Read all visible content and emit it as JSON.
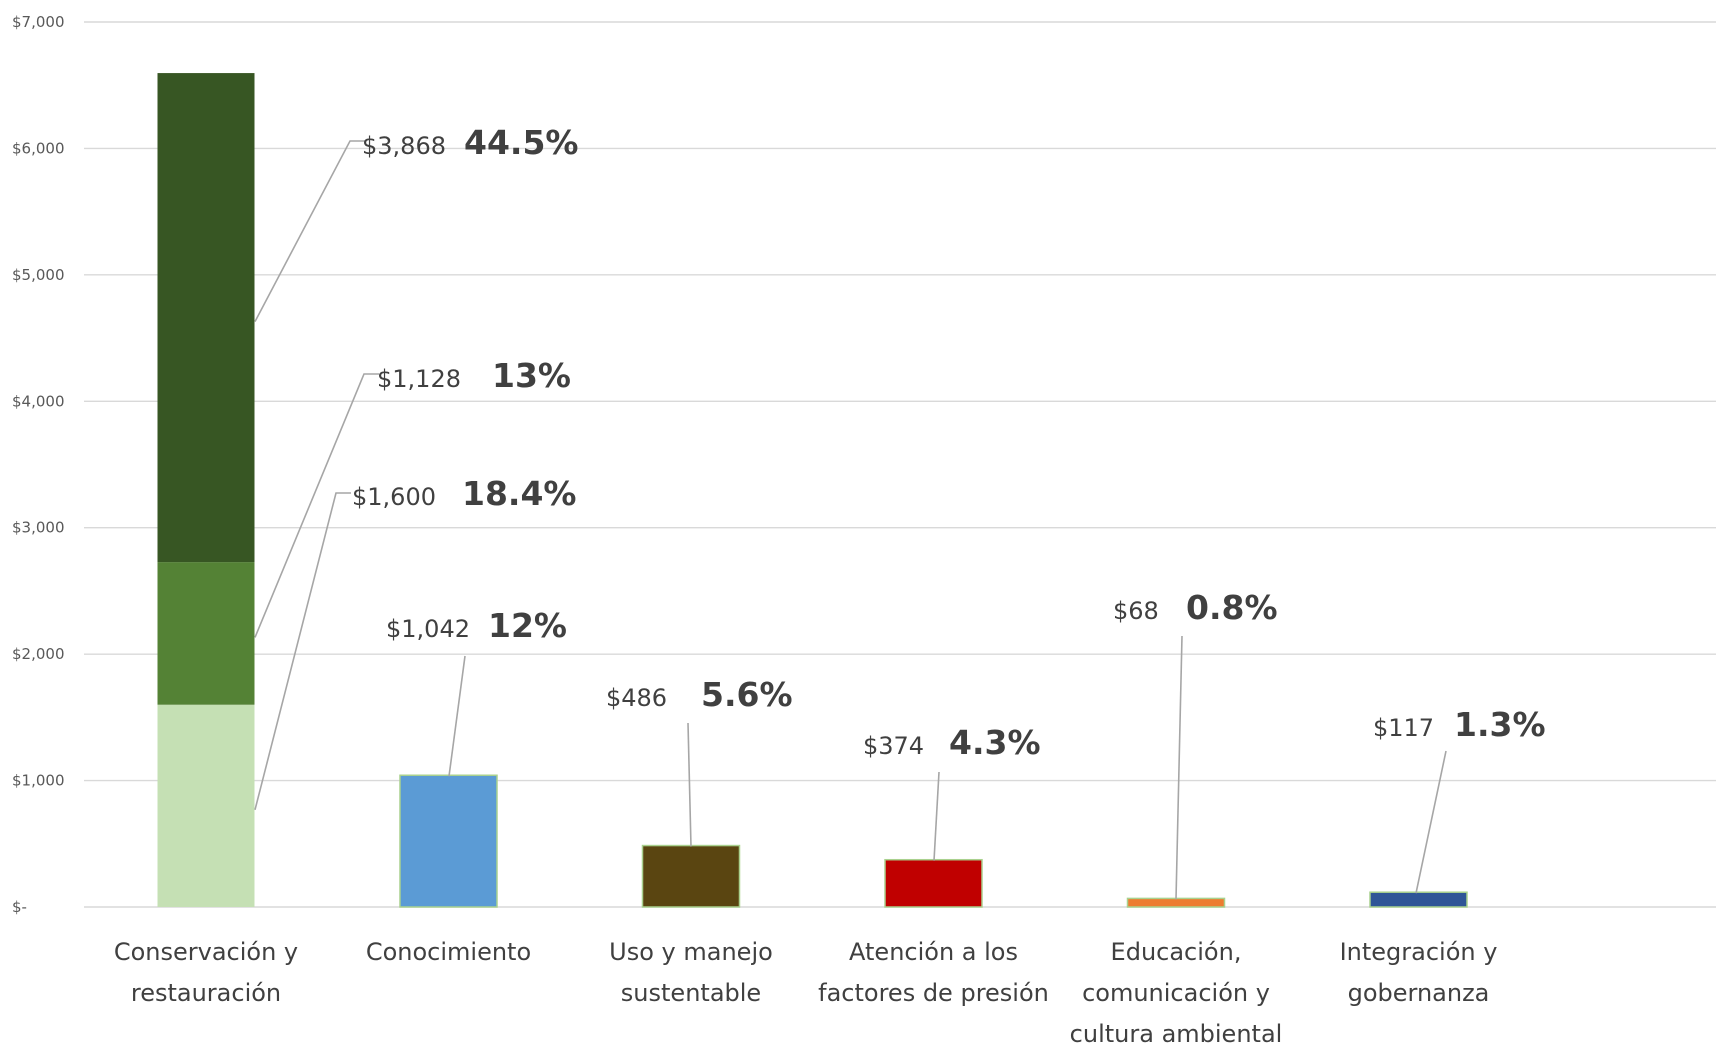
{
  "chart_data": {
    "type": "bar",
    "stacked": true,
    "title": "",
    "xlabel": "",
    "ylabel": "",
    "ylim": [
      0,
      7000
    ],
    "y_ticks": [
      {
        "value": 0,
        "label": "$-"
      },
      {
        "value": 1000,
        "label": "$1,000"
      },
      {
        "value": 2000,
        "label": "$2,000"
      },
      {
        "value": 3000,
        "label": "$3,000"
      },
      {
        "value": 4000,
        "label": "$4,000"
      },
      {
        "value": 5000,
        "label": "$5,000"
      },
      {
        "value": 6000,
        "label": "$6,000"
      },
      {
        "value": 7000,
        "label": "$7,000"
      }
    ],
    "grid": true,
    "legend": "none",
    "categories": [
      {
        "id": "conservacion",
        "lines": [
          "Conservación y",
          "restauración"
        ]
      },
      {
        "id": "conocimiento",
        "lines": [
          "Conocimiento"
        ]
      },
      {
        "id": "uso",
        "lines": [
          "Uso y manejo",
          "sustentable"
        ]
      },
      {
        "id": "atencion",
        "lines": [
          "Atención a los",
          "factores de presión"
        ]
      },
      {
        "id": "educacion",
        "lines": [
          "Educación,",
          "comunicación y",
          "cultura ambiental"
        ]
      },
      {
        "id": "integracion",
        "lines": [
          "Integración y",
          "gobernanza"
        ]
      }
    ],
    "segments": [
      {
        "category": 0,
        "value": 1600,
        "color": "#c5e0b4",
        "value_label": "$1,600",
        "percent_label": "18.4%"
      },
      {
        "category": 0,
        "value": 1128,
        "color": "#548235",
        "value_label": "$1,128",
        "percent_label": "13%"
      },
      {
        "category": 0,
        "value": 3868,
        "color": "#375623",
        "value_label": "$3,868",
        "percent_label": "44.5%"
      },
      {
        "category": 1,
        "value": 1042,
        "color": "#5b9bd5",
        "value_label": "$1,042",
        "percent_label": "12%"
      },
      {
        "category": 2,
        "value": 486,
        "color": "#5a4511",
        "value_label": "$486",
        "percent_label": "5.6%"
      },
      {
        "category": 3,
        "value": 374,
        "color": "#c00000",
        "value_label": "$374",
        "percent_label": "4.3%"
      },
      {
        "category": 4,
        "value": 68,
        "color": "#ed7d31",
        "value_label": "$68",
        "percent_label": "0.8%"
      },
      {
        "category": 5,
        "value": 117,
        "color": "#2f5597",
        "value_label": "$117",
        "percent_label": "1.3%"
      }
    ],
    "colors": {
      "gridline": "#d9d9d9",
      "axis_text": "#595959",
      "label_text": "#404040",
      "leader_line": "#a6a6a6"
    }
  }
}
